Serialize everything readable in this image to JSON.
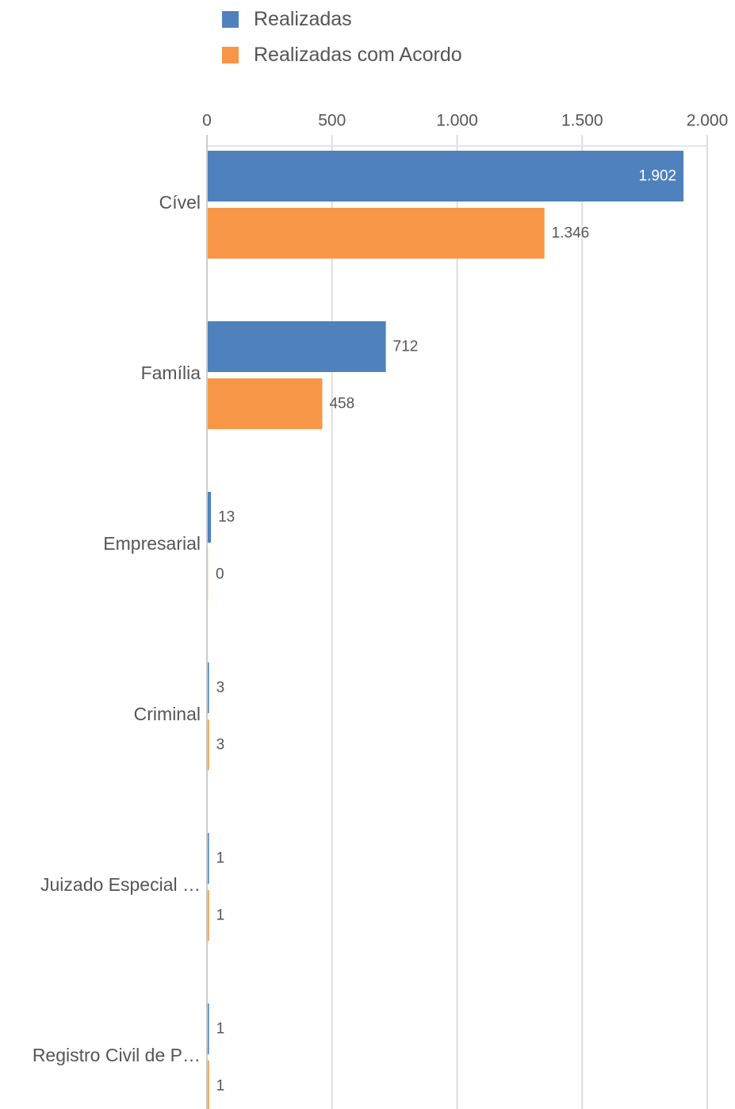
{
  "chart_data": {
    "type": "bar",
    "orientation": "horizontal",
    "categories": [
      "Cível",
      "Família",
      "Empresarial",
      "Criminal",
      "Juizado Especial …",
      "Registro Civil de P…"
    ],
    "series": [
      {
        "name": "Realizadas",
        "color": "#4f81bd",
        "values": [
          1902,
          712,
          13,
          3,
          1,
          1
        ],
        "labels": [
          "1.902",
          "712",
          "13",
          "3",
          "1",
          "1"
        ]
      },
      {
        "name": "Realizadas com Acordo",
        "color": "#f79646",
        "values": [
          1346,
          458,
          0,
          3,
          1,
          1
        ],
        "labels": [
          "1.346",
          "458",
          "0",
          "3",
          "1",
          "1"
        ]
      }
    ],
    "xlim": [
      0,
      2000
    ],
    "xticks": [
      0,
      500,
      1000,
      1500,
      2000
    ],
    "xtick_labels": [
      "0",
      "500",
      "1.000",
      "1.500",
      "2.000"
    ],
    "x_axis_position": "top",
    "legend_position": "top",
    "grid": true,
    "title": "",
    "xlabel": "",
    "ylabel": ""
  }
}
